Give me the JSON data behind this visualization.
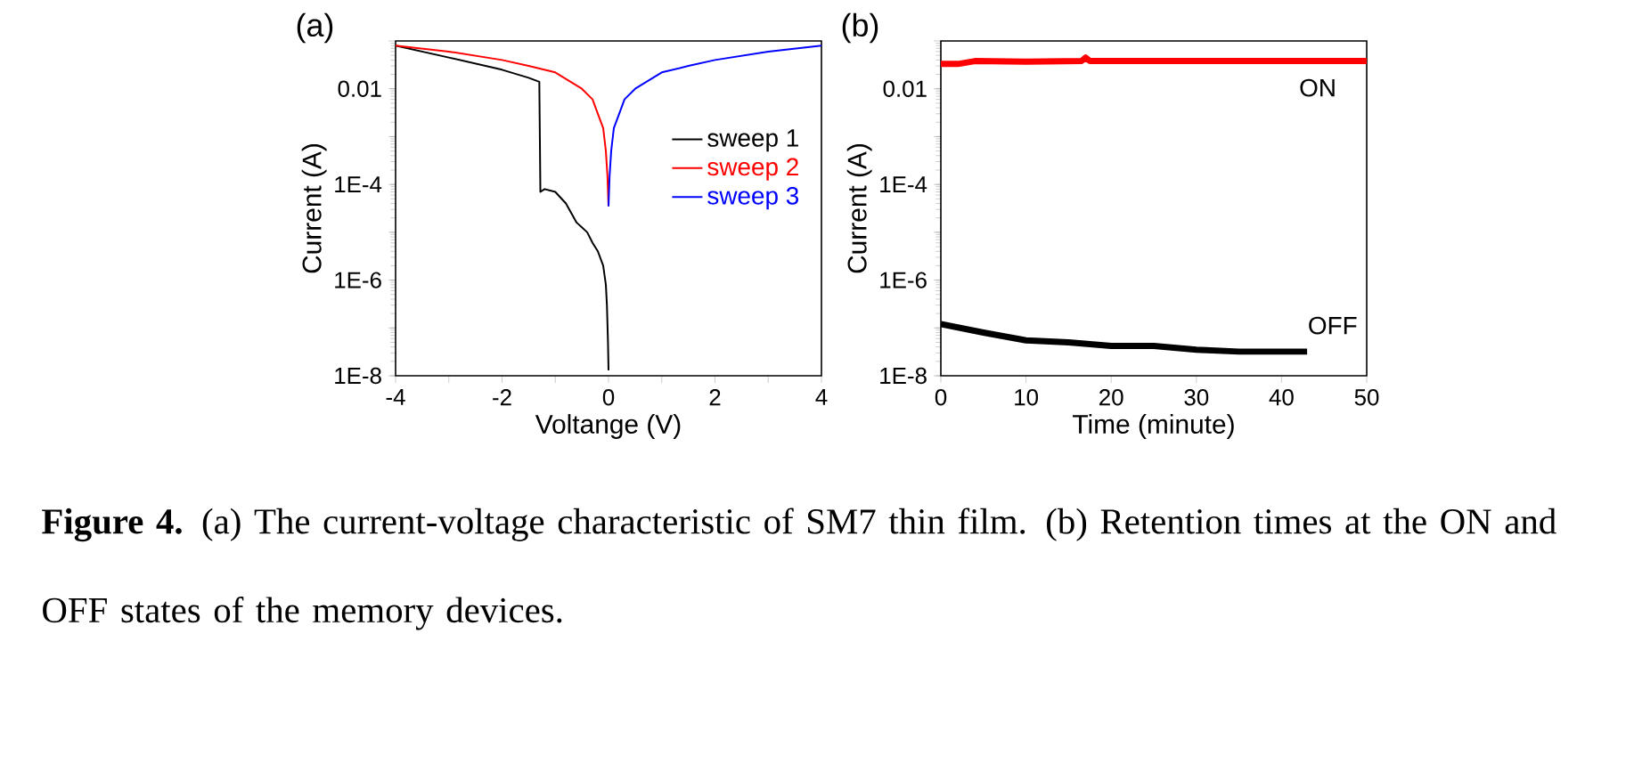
{
  "chart_data": [
    {
      "type": "line",
      "title": "(a)",
      "xlabel": "Voltange (V)",
      "ylabel": "Current (A)",
      "log": "y",
      "legend": "right",
      "marker": "none",
      "line_style": "solid",
      "xlim": [
        -4,
        4
      ],
      "ylim": [
        1e-08,
        0.1
      ],
      "xticks": [
        -4,
        {
          "value": -3,
          "label": null
        },
        -2,
        {
          "value": -1,
          "label": null
        },
        0,
        {
          "value": 1,
          "label": null
        },
        2,
        {
          "value": 3,
          "label": null
        },
        4
      ],
      "yticks": [
        {
          "value": 1e-08,
          "label": "1E-8"
        },
        {
          "value": 1e-07,
          "label": null
        },
        {
          "value": 1e-06,
          "label": "1E-6"
        },
        {
          "value": 1e-05,
          "label": null
        },
        {
          "value": 0.0001,
          "label": "1E-4"
        },
        {
          "value": 0.001,
          "label": null
        },
        {
          "value": 0.01,
          "label": "0.01"
        },
        {
          "value": 0.1,
          "label": null
        }
      ],
      "series": [
        {
          "name": "sweep 1",
          "color": "#000000",
          "x": [
            -4,
            -3,
            -2,
            -1.5,
            -1.3,
            -1.28,
            -1.2,
            -1.0,
            -0.8,
            -0.6,
            -0.4,
            -0.3,
            -0.2,
            -0.1,
            -0.05,
            -0.03,
            -0.01,
            0
          ],
          "values": [
            0.08,
            0.045,
            0.025,
            0.017,
            0.014,
            7e-05,
            8e-05,
            7e-05,
            4e-05,
            1.6e-05,
            1e-05,
            6e-06,
            4e-06,
            2e-06,
            8e-07,
            3e-07,
            5e-08,
            1.3e-08
          ]
        },
        {
          "name": "sweep 2",
          "color": "#ff0000",
          "x": [
            -4,
            -3,
            -2,
            -1.5,
            -1,
            -0.5,
            -0.3,
            -0.2,
            -0.1,
            -0.05,
            -0.02,
            0
          ],
          "values": [
            0.08,
            0.06,
            0.04,
            0.03,
            0.022,
            0.01,
            0.006,
            0.003,
            0.0015,
            0.0005,
            0.00015,
            3.5e-05
          ]
        },
        {
          "name": "sweep 3",
          "color": "#0000ff",
          "x": [
            0,
            0.02,
            0.05,
            0.1,
            0.2,
            0.3,
            0.5,
            1,
            1.5,
            2,
            3,
            4
          ],
          "values": [
            3.5e-05,
            0.00015,
            0.0005,
            0.0015,
            0.003,
            0.006,
            0.01,
            0.022,
            0.03,
            0.04,
            0.06,
            0.08
          ]
        }
      ],
      "annotations": [
        "**Figure 4.** (a) The current-voltage characteristic of SM7 thin film. (b) Retention times at the ON and OFF states of the memory devices."
      ]
    },
    {
      "type": "line",
      "title": "(b)",
      "xlabel": "Time (minute)",
      "ylabel": "Current (A)",
      "log": "y",
      "marker": "none",
      "line_style": "solid",
      "xlim": [
        0,
        50
      ],
      "ylim": [
        1e-08,
        0.1
      ],
      "xticks": [
        0,
        10,
        20,
        30,
        40,
        50
      ],
      "yticks": [
        {
          "value": 1e-08,
          "label": "1E-8"
        },
        {
          "value": 1e-07,
          "label": null
        },
        {
          "value": 1e-06,
          "label": "1E-6"
        },
        {
          "value": 1e-05,
          "label": null
        },
        {
          "value": 0.0001,
          "label": "1E-4"
        },
        {
          "value": 0.001,
          "label": null
        },
        {
          "value": 0.01,
          "label": "0.01"
        },
        {
          "value": 0.1,
          "label": null
        }
      ],
      "series": [
        {
          "color": "#ff0000",
          "x": [
            0,
            2,
            4,
            10,
            16.5,
            17,
            17.5,
            25,
            35,
            50
          ],
          "values": [
            0.033,
            0.033,
            0.038,
            0.037,
            0.038,
            0.045,
            0.038,
            0.038,
            0.038,
            0.038
          ]
        },
        {
          "color": "#000000",
          "x": [
            0,
            5,
            10,
            15,
            20,
            25,
            30,
            35,
            40,
            43
          ],
          "values": [
            1.2e-07,
            8e-08,
            5.5e-08,
            5e-08,
            4.2e-08,
            4.2e-08,
            3.5e-08,
            3.2e-08,
            3.2e-08,
            3.2e-08
          ]
        }
      ],
      "annotations": [
        "ON",
        "OFF"
      ]
    }
  ]
}
